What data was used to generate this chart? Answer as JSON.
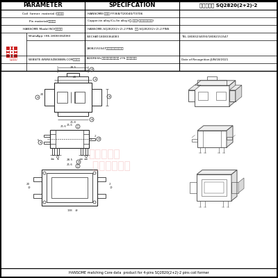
{
  "title": "品名：焕升 SQ2820(2+2)-2",
  "bg_color": "#ffffff",
  "border_color": "#000000",
  "line_color": "#333333",
  "watermark_color": "#f0c0c0",
  "header": {
    "param_col": "PARAMETER",
    "spec_col": "SPECIFCATION",
    "row1_param": "Coil  former  material /线架材料",
    "row1_spec": "HANSOME(旗下） FF368/T20040/T3706",
    "row2_param": "Pin material/脚针材料",
    "row2_spec": "Copper-tin alloy(Cu-Sn alloy)/铜-锡合金(镀锡铁线镀锡铁线)",
    "row3_param": "HANSOME Model NO/样品名名",
    "row3_spec": "HANSOME-SQ2820(2+2)-2 PINS  焕升-SQ2820(2+2)-2 PINS",
    "whatsapp": "WhatsApp:+86-18083364083",
    "wechat": "WECHAT:18083364083",
    "wechat2": "18082151547（微信同号）欢迎咨询",
    "tel": "TEL:18083234093/18082151547",
    "website": "WEBSITE:WWW.SZBOBBIN.COM（网店）",
    "address": "ADDRESS:东莞市石排镇下沙大道 276 号焕升工业园",
    "date": "Date of Recognition:JUN/18/2021"
  },
  "footer": "HANSOME matching Core data  product for 4-pins SQ2820(2+2)-2 pins coil former",
  "drawing_color": "#2a2a2a",
  "dim_color": "#2a2a2a",
  "watermark_text": "东莞焕格升塑料",
  "watermark_text2": "有限公司"
}
